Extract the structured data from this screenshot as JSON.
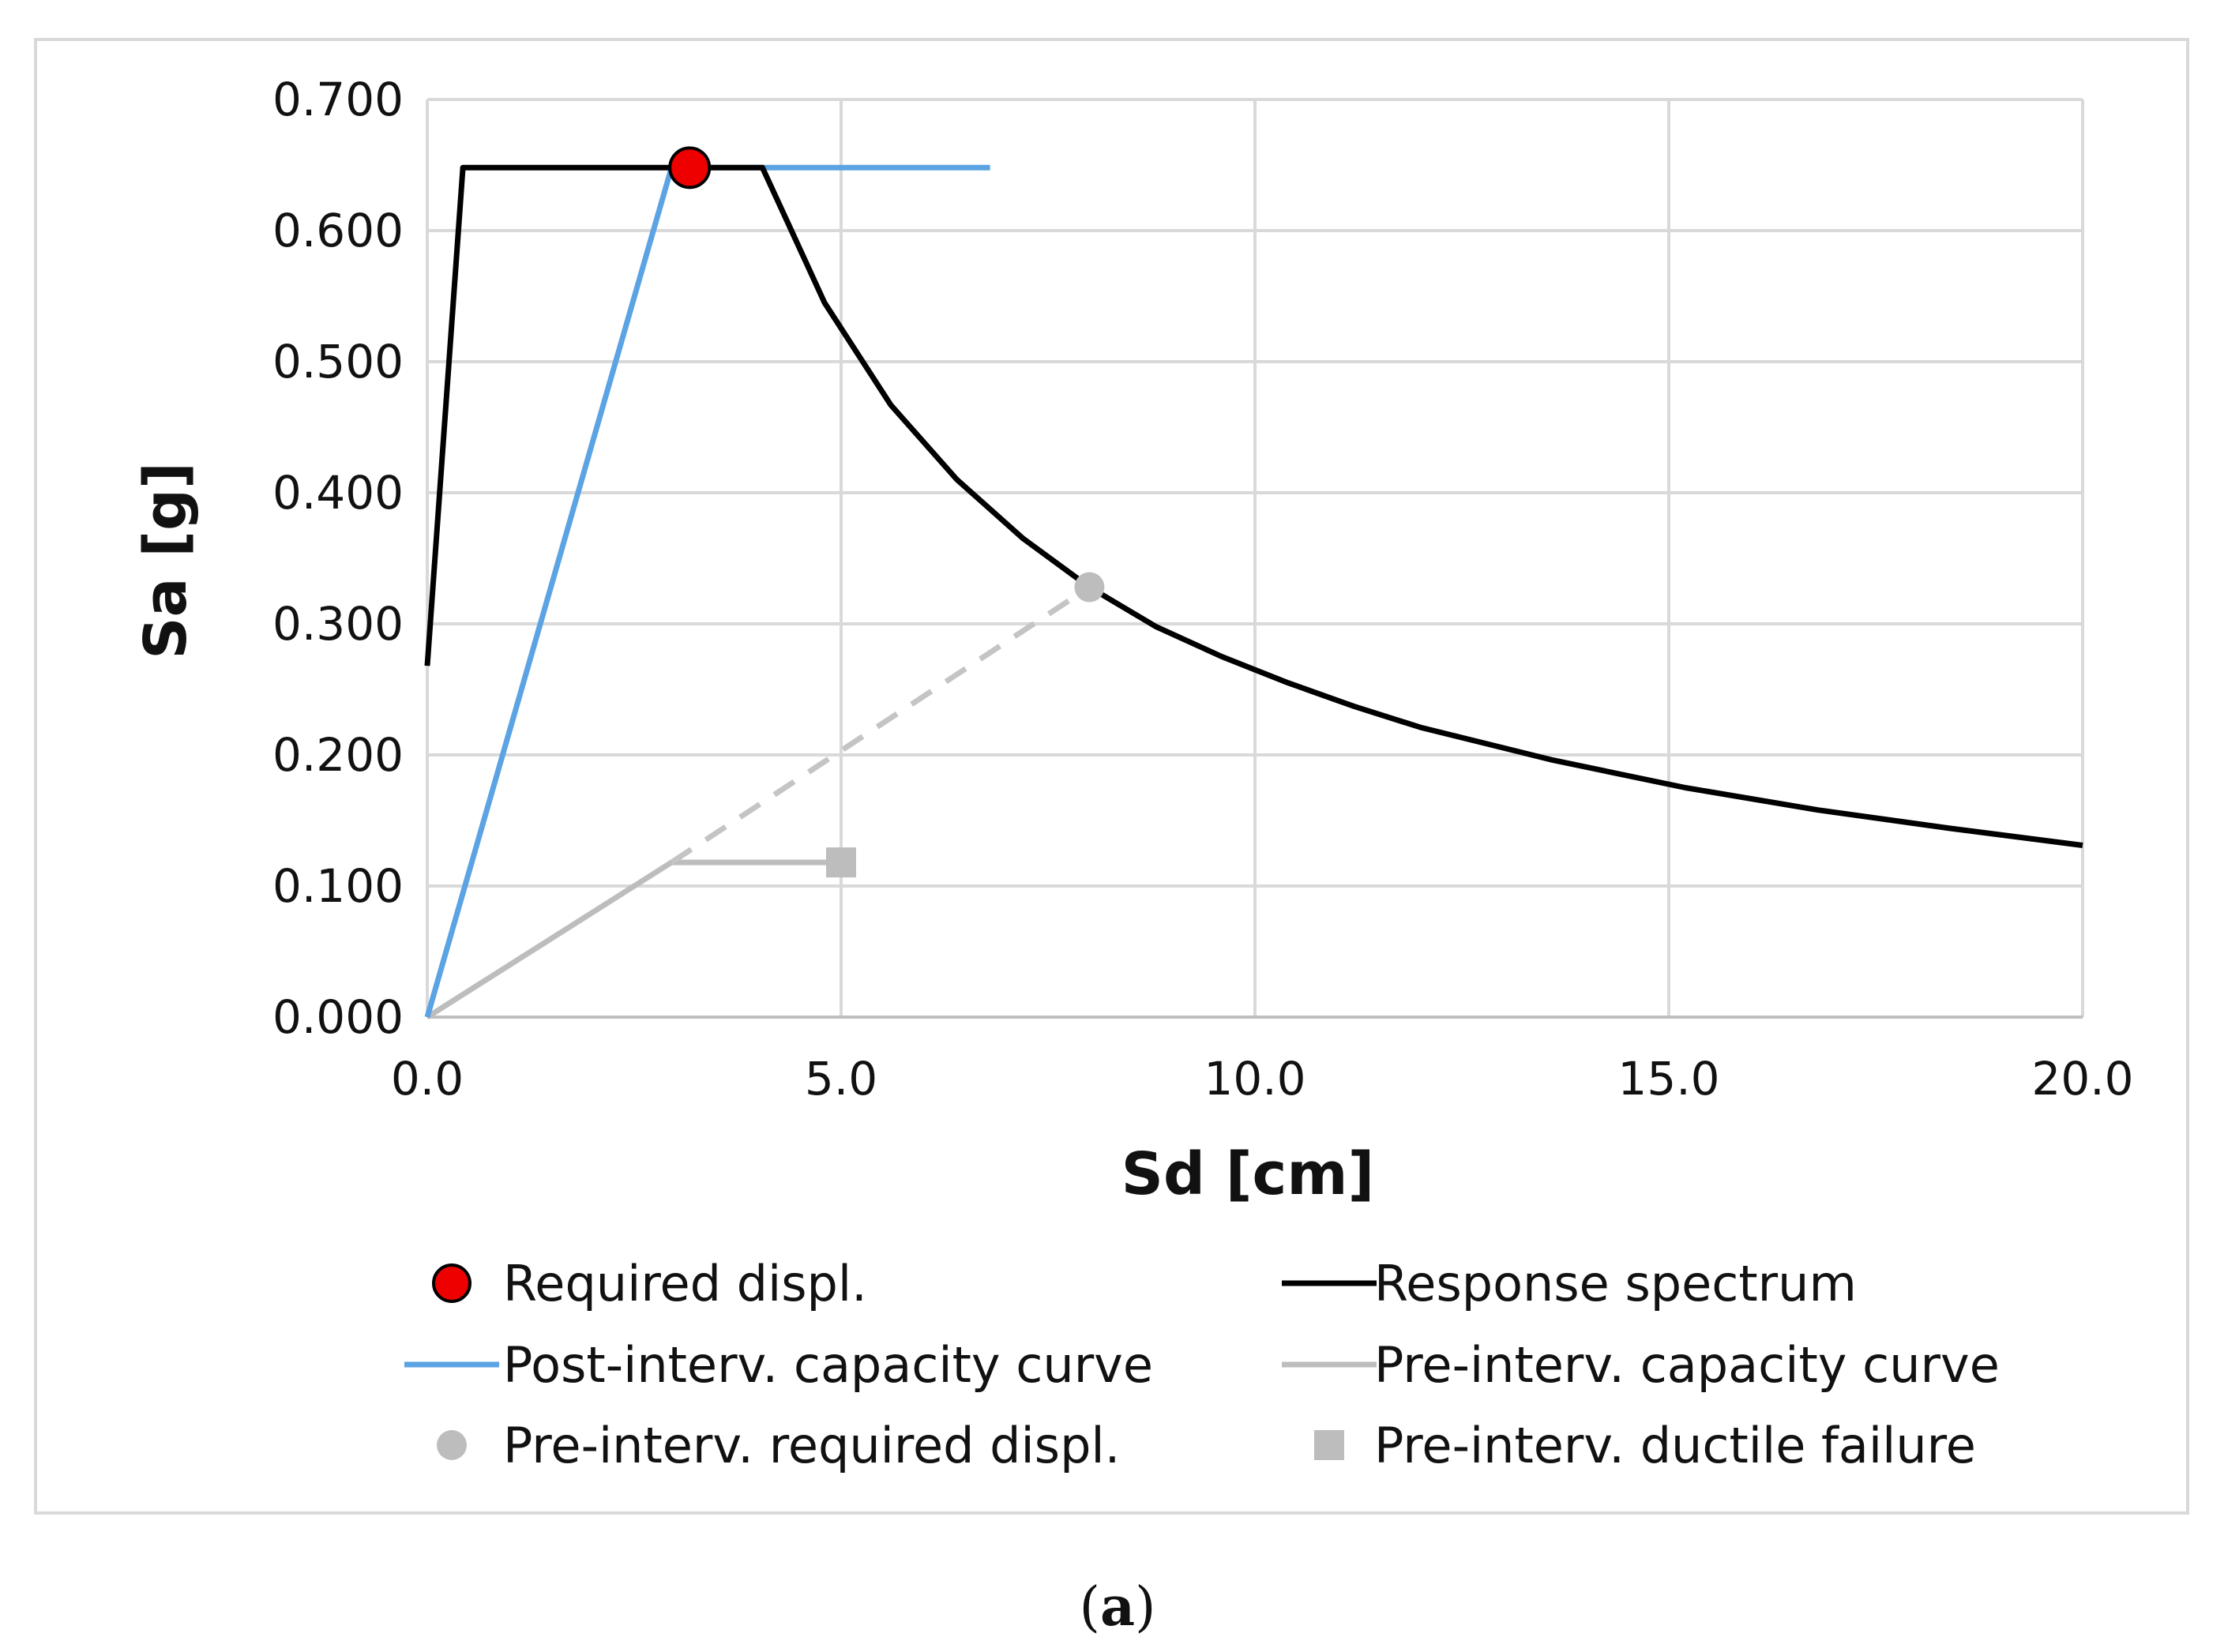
{
  "caption": {
    "open": "(",
    "letter": "a",
    "close": ")"
  },
  "chart_data": {
    "type": "line",
    "xlabel": "Sd [cm]",
    "ylabel": "Sa [g]",
    "xlim": [
      0,
      20
    ],
    "ylim": [
      0,
      0.7
    ],
    "grid": true,
    "legend_position": "bottom",
    "x_ticks": [
      {
        "value": 0,
        "label": "0.0"
      },
      {
        "value": 5,
        "label": "5.0"
      },
      {
        "value": 10,
        "label": "10.0"
      },
      {
        "value": 15,
        "label": "15.0"
      },
      {
        "value": 20,
        "label": "20.0"
      }
    ],
    "y_ticks": [
      {
        "value": 0,
        "label": "0.000"
      },
      {
        "value": 0.1,
        "label": "0.100"
      },
      {
        "value": 0.2,
        "label": "0.200"
      },
      {
        "value": 0.3,
        "label": "0.300"
      },
      {
        "value": 0.4,
        "label": "0.400"
      },
      {
        "value": 0.5,
        "label": "0.500"
      },
      {
        "value": 0.6,
        "label": "0.600"
      },
      {
        "value": 0.7,
        "label": "0.700"
      }
    ],
    "series": [
      {
        "name": "Response spectrum",
        "kind": "line",
        "color": "#000000",
        "dashed": false,
        "points": [
          [
            0,
            0.268
          ],
          [
            0.43,
            0.648
          ],
          [
            4.05,
            0.648
          ],
          [
            4.4,
            0.6
          ],
          [
            4.8,
            0.545
          ],
          [
            5.6,
            0.467
          ],
          [
            6.4,
            0.41
          ],
          [
            7.2,
            0.365
          ],
          [
            8.0,
            0.328
          ],
          [
            8.8,
            0.298
          ],
          [
            9.6,
            0.275
          ],
          [
            10.4,
            0.255
          ],
          [
            11.2,
            0.237
          ],
          [
            12.0,
            0.221
          ],
          [
            13.6,
            0.196
          ],
          [
            15.2,
            0.175
          ],
          [
            16.8,
            0.158
          ],
          [
            18.4,
            0.144
          ],
          [
            20.0,
            0.131
          ]
        ]
      },
      {
        "name": "Post-interv. capacity curve",
        "kind": "line",
        "color": "#5ba3e3",
        "dashed": false,
        "points": [
          [
            0,
            0
          ],
          [
            2.95,
            0.648
          ],
          [
            6.8,
            0.648
          ]
        ]
      },
      {
        "name": "Pre-interv. capacity curve",
        "kind": "line",
        "color": "#bdbdbd",
        "dashed": false,
        "points": [
          [
            0,
            0
          ],
          [
            2.95,
            0.118
          ],
          [
            5.0,
            0.118
          ]
        ]
      },
      {
        "name": "Pre-interv. demand line",
        "kind": "line",
        "color": "#c4c4c4",
        "dashed": true,
        "legend": false,
        "points": [
          [
            2.95,
            0.118
          ],
          [
            8.0,
            0.328
          ]
        ]
      },
      {
        "name": "Required displ.",
        "kind": "marker",
        "marker": "circle",
        "color": "#ee0000",
        "stroke": "#000000",
        "points": [
          [
            3.17,
            0.648
          ]
        ]
      },
      {
        "name": "Pre-interv. required displ.",
        "kind": "marker",
        "marker": "circle",
        "color": "#bdbdbd",
        "stroke": "none",
        "points": [
          [
            8.0,
            0.328
          ]
        ]
      },
      {
        "name": "Pre-interv. ductile failure",
        "kind": "marker",
        "marker": "square",
        "color": "#bdbdbd",
        "stroke": "none",
        "points": [
          [
            5.0,
            0.118
          ]
        ]
      }
    ],
    "legend": [
      {
        "label": "Required displ.",
        "symbol": "circle",
        "color": "#ee0000",
        "stroke": "#000000"
      },
      {
        "label": "Response spectrum",
        "symbol": "line",
        "color": "#000000"
      },
      {
        "label": "Post-interv. capacity curve",
        "symbol": "line",
        "color": "#5ba3e3"
      },
      {
        "label": "Pre-interv. capacity curve",
        "symbol": "line",
        "color": "#bdbdbd"
      },
      {
        "label": "Pre-interv. required displ.",
        "symbol": "circle",
        "color": "#bdbdbd"
      },
      {
        "label": "Pre-interv. ductile failure",
        "symbol": "square",
        "color": "#bdbdbd"
      }
    ]
  }
}
